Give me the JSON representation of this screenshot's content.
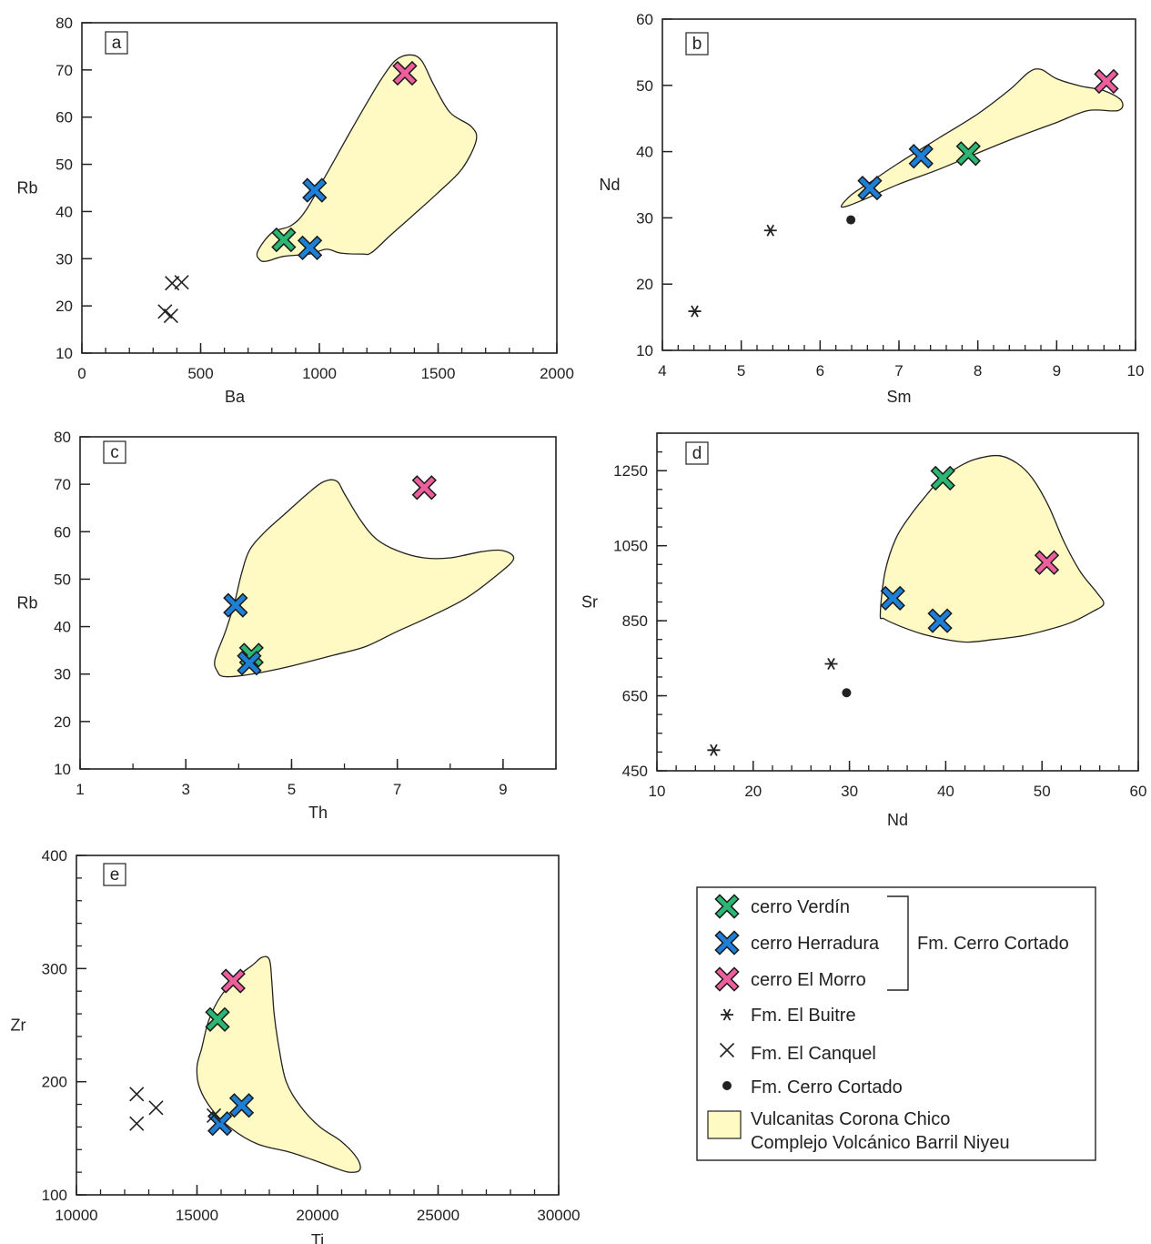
{
  "colors": {
    "verdin": "#2bb673",
    "herradura": "#1f7fd6",
    "morro": "#ec5f9c",
    "field_fill": "#fff9c4",
    "field_stroke": "#222222",
    "black": "#222222"
  },
  "legend": {
    "items": [
      {
        "label": "cerro Verdín",
        "symbol": "x-verdin"
      },
      {
        "label": "cerro Herradura",
        "symbol": "x-herradura"
      },
      {
        "label": "cerro El Morro",
        "symbol": "x-morro"
      },
      {
        "label": "Fm. El Buitre",
        "symbol": "asterisk"
      },
      {
        "label": "Fm. El Canquel",
        "symbol": "x-thin"
      },
      {
        "label": "Fm. Cerro Cortado",
        "symbol": "dot"
      }
    ],
    "bracket_label": "Fm. Cerro Cortado",
    "field_label_line1": "Vulcanitas Corona Chico",
    "field_label_line2": "Complejo Volcánico Barril Niyeu"
  },
  "chart_data": [
    {
      "panel": "a",
      "type": "scatter",
      "xlabel": "Ba",
      "ylabel": "Rb",
      "xlim": [
        0,
        2000
      ],
      "ylim": [
        10,
        80
      ],
      "xticks": [
        0,
        500,
        1000,
        1500,
        2000
      ],
      "yticks": [
        10,
        20,
        30,
        40,
        50,
        60,
        70,
        80
      ],
      "x_minor": 100,
      "y_minor": null,
      "series": [
        {
          "name": "cerro Verdín",
          "symbol": "x-verdin",
          "points": [
            [
              850,
              34
            ]
          ]
        },
        {
          "name": "cerro Herradura",
          "symbol": "x-herradura",
          "points": [
            [
              980,
              44.5
            ],
            [
              960,
              32.3
            ]
          ]
        },
        {
          "name": "cerro El Morro",
          "symbol": "x-morro",
          "points": [
            [
              1360,
              69.3
            ]
          ]
        },
        {
          "name": "Fm. El Canquel",
          "symbol": "x-thin",
          "points": [
            [
              380,
              24.8
            ],
            [
              420,
              25
            ],
            [
              350,
              18.8
            ],
            [
              375,
              17.9
            ]
          ]
        }
      ],
      "field": [
        [
          750,
          29.7
        ],
        [
          740,
          31.5
        ],
        [
          800,
          35.5
        ],
        [
          880,
          37
        ],
        [
          940,
          40
        ],
        [
          1020,
          47
        ],
        [
          1120,
          56
        ],
        [
          1200,
          63
        ],
        [
          1260,
          68
        ],
        [
          1320,
          72
        ],
        [
          1380,
          73.2
        ],
        [
          1430,
          72
        ],
        [
          1480,
          67
        ],
        [
          1550,
          61
        ],
        [
          1640,
          58
        ],
        [
          1660,
          55
        ],
        [
          1600,
          49
        ],
        [
          1500,
          44
        ],
        [
          1390,
          39
        ],
        [
          1300,
          35
        ],
        [
          1220,
          31.3
        ],
        [
          1180,
          31
        ],
        [
          1090,
          31.2
        ],
        [
          1030,
          32
        ],
        [
          960,
          31
        ],
        [
          850,
          30.5
        ],
        [
          780,
          29.5
        ]
      ]
    },
    {
      "panel": "b",
      "type": "scatter",
      "xlabel": "Sm",
      "ylabel": "Nd",
      "xlim": [
        4,
        10
      ],
      "ylim": [
        10,
        60
      ],
      "xticks": [
        4,
        5,
        6,
        7,
        8,
        9,
        10
      ],
      "yticks": [
        10,
        20,
        30,
        40,
        50,
        60
      ],
      "x_minor": 0.2,
      "y_minor": null,
      "series": [
        {
          "name": "cerro Verdín",
          "symbol": "x-verdin",
          "points": [
            [
              7.88,
              39.7
            ]
          ]
        },
        {
          "name": "cerro Herradura",
          "symbol": "x-herradura",
          "points": [
            [
              7.28,
              39.3
            ],
            [
              6.63,
              34.5
            ]
          ]
        },
        {
          "name": "cerro El Morro",
          "symbol": "x-morro",
          "points": [
            [
              9.63,
              50.6
            ]
          ]
        },
        {
          "name": "Fm. El Buitre",
          "symbol": "asterisk",
          "points": [
            [
              5.37,
              28.1
            ],
            [
              4.41,
              15.9
            ]
          ]
        },
        {
          "name": "Fm. Cerro Cortado",
          "symbol": "dot",
          "points": [
            [
              6.39,
              29.7
            ]
          ]
        }
      ],
      "field": [
        [
          6.27,
          31.8
        ],
        [
          6.4,
          33.5
        ],
        [
          6.65,
          35.5
        ],
        [
          7.0,
          38.3
        ],
        [
          7.5,
          42
        ],
        [
          8.0,
          45.7
        ],
        [
          8.4,
          49.3
        ],
        [
          8.65,
          52
        ],
        [
          8.8,
          52.4
        ],
        [
          9.0,
          51
        ],
        [
          9.3,
          49.9
        ],
        [
          9.6,
          49.2
        ],
        [
          9.82,
          47.7
        ],
        [
          9.78,
          46.2
        ],
        [
          9.4,
          46.2
        ],
        [
          9.0,
          44.4
        ],
        [
          8.5,
          42.2
        ],
        [
          8.0,
          39.8
        ],
        [
          7.5,
          37.3
        ],
        [
          7.0,
          35.1
        ],
        [
          6.6,
          33
        ],
        [
          6.35,
          31.8
        ]
      ]
    },
    {
      "panel": "c",
      "type": "scatter",
      "xlabel": "Th",
      "ylabel": "Rb",
      "xlim": [
        1,
        10
      ],
      "ylim": [
        10,
        80
      ],
      "xticks": [
        1,
        3,
        5,
        7,
        9
      ],
      "yticks": [
        10,
        20,
        30,
        40,
        50,
        60,
        70,
        80
      ],
      "x_minor": 1,
      "y_minor": null,
      "series": [
        {
          "name": "cerro Verdín",
          "symbol": "x-verdin",
          "points": [
            [
              4.24,
              34
            ]
          ]
        },
        {
          "name": "cerro Herradura",
          "symbol": "x-herradura",
          "points": [
            [
              3.94,
              44.5
            ],
            [
              4.2,
              32.3
            ]
          ]
        },
        {
          "name": "cerro El Morro",
          "symbol": "x-morro",
          "points": [
            [
              7.51,
              69.3
            ]
          ]
        }
      ],
      "field": [
        [
          3.6,
          30.5
        ],
        [
          3.55,
          33
        ],
        [
          3.75,
          39
        ],
        [
          3.92,
          45
        ],
        [
          4.05,
          51
        ],
        [
          4.2,
          56
        ],
        [
          4.5,
          60
        ],
        [
          4.9,
          64
        ],
        [
          5.3,
          68
        ],
        [
          5.6,
          70.5
        ],
        [
          5.85,
          70.7
        ],
        [
          6.0,
          68
        ],
        [
          6.3,
          62.5
        ],
        [
          6.6,
          58.5
        ],
        [
          7.0,
          56
        ],
        [
          7.5,
          54.5
        ],
        [
          8.0,
          54.5
        ],
        [
          8.6,
          55.8
        ],
        [
          9.0,
          56
        ],
        [
          9.2,
          54.3
        ],
        [
          8.9,
          51
        ],
        [
          8.3,
          46
        ],
        [
          7.6,
          42
        ],
        [
          7.0,
          39
        ],
        [
          6.4,
          35.8
        ],
        [
          5.8,
          34
        ],
        [
          5.0,
          31.7
        ],
        [
          4.5,
          30.5
        ],
        [
          4.0,
          29.6
        ],
        [
          3.7,
          29.5
        ]
      ]
    },
    {
      "panel": "d",
      "type": "scatter",
      "xlabel": "Nd",
      "ylabel": "Sr",
      "xlim": [
        10,
        60
      ],
      "ylim": [
        450,
        1350
      ],
      "xticks": [
        10,
        20,
        30,
        40,
        50,
        60
      ],
      "yticks": [
        450,
        650,
        850,
        1050,
        1250
      ],
      "x_minor": 2,
      "y_minor": 50,
      "series": [
        {
          "name": "cerro Verdín",
          "symbol": "x-verdin",
          "points": [
            [
              39.7,
              1230
            ]
          ]
        },
        {
          "name": "cerro Herradura",
          "symbol": "x-herradura",
          "points": [
            [
              34.5,
              910
            ],
            [
              39.4,
              850
            ]
          ]
        },
        {
          "name": "cerro El Morro",
          "symbol": "x-morro",
          "points": [
            [
              50.5,
              1005
            ]
          ]
        },
        {
          "name": "Fm. El Buitre",
          "symbol": "asterisk",
          "points": [
            [
              28.1,
              735
            ],
            [
              15.9,
              505
            ]
          ]
        },
        {
          "name": "Fm. Cerro Cortado",
          "symbol": "dot",
          "points": [
            [
              29.7,
              658
            ]
          ]
        }
      ],
      "field": [
        [
          33.2,
          868
        ],
        [
          33.7,
          980
        ],
        [
          34.8,
          1068
        ],
        [
          36.3,
          1130
        ],
        [
          38,
          1185
        ],
        [
          39.2,
          1220
        ],
        [
          41,
          1255
        ],
        [
          43,
          1280
        ],
        [
          45.5,
          1290
        ],
        [
          47.4,
          1270
        ],
        [
          49,
          1230
        ],
        [
          50.7,
          1155
        ],
        [
          52.3,
          1060
        ],
        [
          54,
          980
        ],
        [
          55.7,
          925
        ],
        [
          56.4,
          895
        ],
        [
          55.3,
          875
        ],
        [
          53,
          845
        ],
        [
          50.5,
          825
        ],
        [
          48,
          810
        ],
        [
          45,
          800
        ],
        [
          42.3,
          793
        ],
        [
          40,
          800
        ],
        [
          37.5,
          815
        ],
        [
          35.3,
          835
        ],
        [
          33.6,
          855
        ]
      ]
    },
    {
      "panel": "e",
      "type": "scatter",
      "xlabel": "Ti",
      "ylabel": "Zr",
      "xlim": [
        10000,
        30000
      ],
      "ylim": [
        100,
        400
      ],
      "xticks": [
        10000,
        15000,
        20000,
        25000,
        30000
      ],
      "yticks": [
        100,
        200,
        300,
        400
      ],
      "x_minor": 1000,
      "y_minor": 20,
      "series": [
        {
          "name": "cerro Verdín",
          "symbol": "x-verdin",
          "points": [
            [
              15850,
              255
            ]
          ]
        },
        {
          "name": "cerro Herradura",
          "symbol": "x-herradura",
          "points": [
            [
              16850,
              179
            ],
            [
              15950,
              163
            ]
          ]
        },
        {
          "name": "cerro El Morro",
          "symbol": "x-morro",
          "points": [
            [
              16500,
              289
            ]
          ]
        },
        {
          "name": "Fm. El Canquel",
          "symbol": "x-thin",
          "points": [
            [
              12500,
              189
            ],
            [
              12500,
              163
            ],
            [
              13300,
              177
            ],
            [
              15700,
              170
            ]
          ]
        }
      ],
      "field": [
        [
          15200,
          230
        ],
        [
          15000,
          213
        ],
        [
          15100,
          195
        ],
        [
          15600,
          176
        ],
        [
          16400,
          159
        ],
        [
          17500,
          145
        ],
        [
          18800,
          138
        ],
        [
          19800,
          131
        ],
        [
          20700,
          124
        ],
        [
          21300,
          120
        ],
        [
          21750,
          122
        ],
        [
          21650,
          132
        ],
        [
          21000,
          147
        ],
        [
          20100,
          160
        ],
        [
          19300,
          178
        ],
        [
          18700,
          200
        ],
        [
          18400,
          230
        ],
        [
          18200,
          260
        ],
        [
          18100,
          290
        ],
        [
          18000,
          308
        ],
        [
          17700,
          310
        ],
        [
          17300,
          303
        ],
        [
          16700,
          293
        ],
        [
          16000,
          276
        ],
        [
          15500,
          255
        ]
      ]
    }
  ]
}
